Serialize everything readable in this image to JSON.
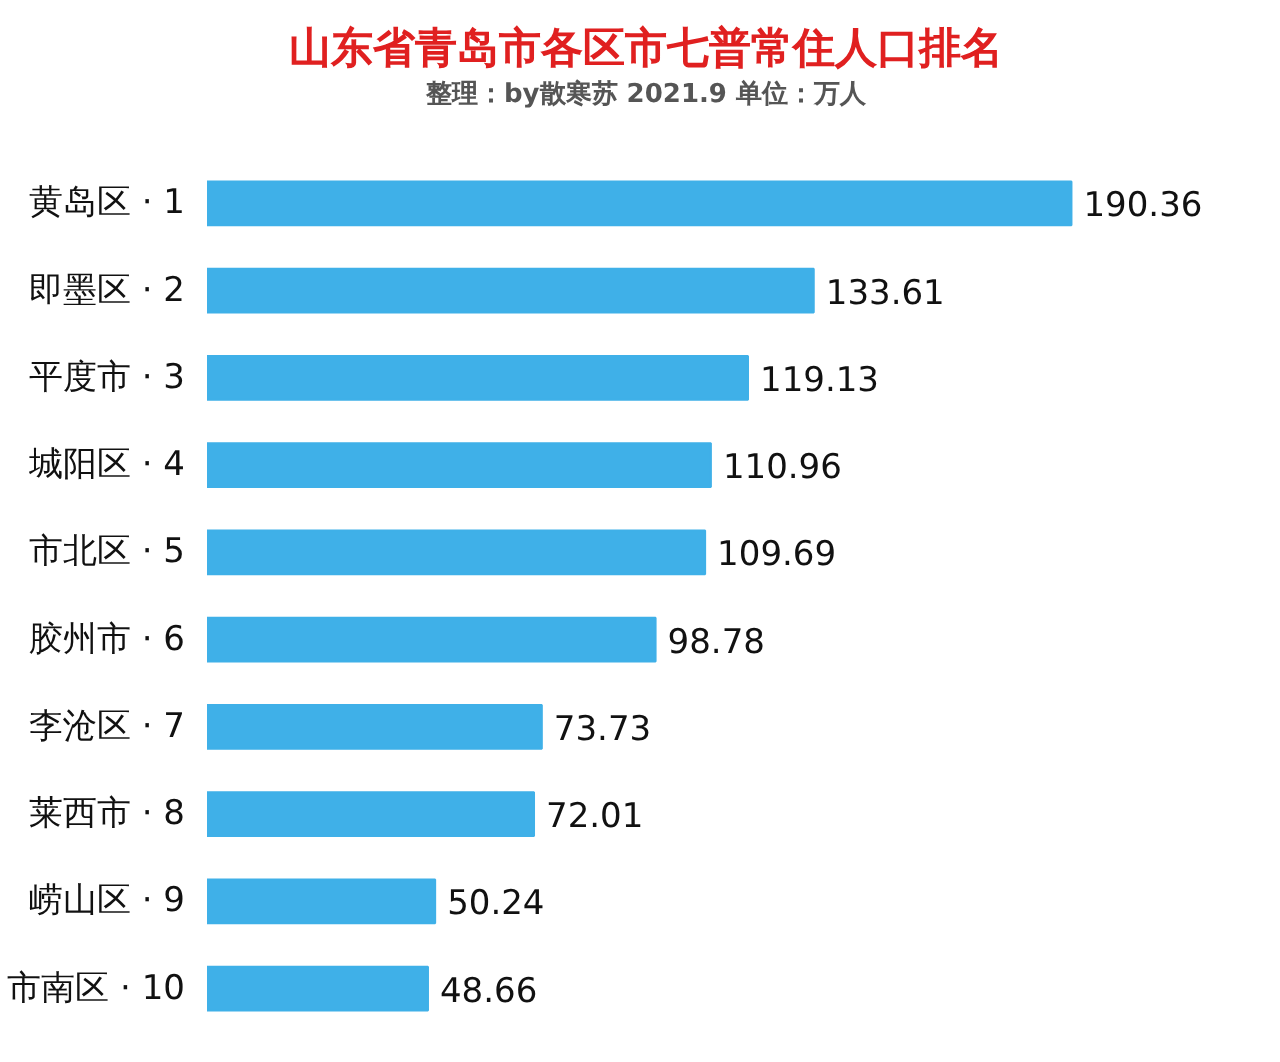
{
  "chart_data": {
    "type": "bar",
    "orientation": "horizontal",
    "title": "山东省青岛市各区市七普常住人口排名",
    "subtitle": "整理：by散寒苏 2021.9  单位：万人",
    "categories": [
      "黄岛区 · 1",
      "即墨区 · 2",
      "平度市 · 3",
      "城阳区 · 4",
      "市北区 · 5",
      "胶州市 · 6",
      "李沧区 · 7",
      "莱西市 · 8",
      "崂山区 · 9",
      "市南区 · 10"
    ],
    "values": [
      190.36,
      133.61,
      119.13,
      110.96,
      109.69,
      98.78,
      73.73,
      72.01,
      50.24,
      48.66
    ],
    "color": "#3fb0e8",
    "data_labels": true,
    "tick_labels": "y",
    "grid": false
  }
}
